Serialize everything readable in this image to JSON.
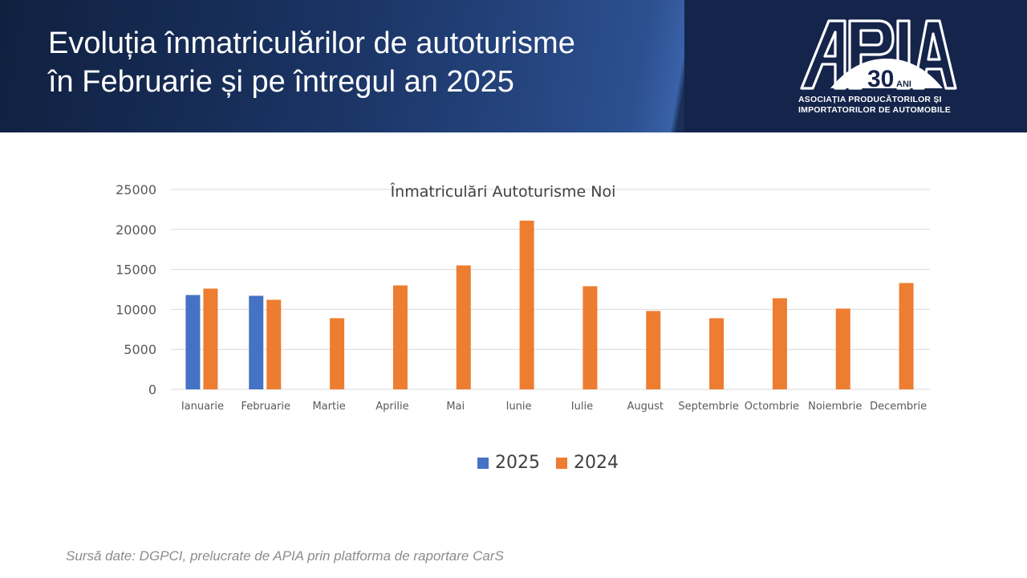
{
  "header": {
    "title_line1": "Evoluția înmatriculărilor de autoturisme",
    "title_line2": "în Februarie și pe întregul an 2025"
  },
  "logo": {
    "wordmark": "APIA",
    "anniversary_number": "30",
    "anniversary_suffix": "ANI",
    "caption_line1": "ASOCIAȚIA PRODUCĂTORILOR ȘI",
    "caption_line2": "IMPORTATORILOR DE AUTOMOBILE"
  },
  "colors": {
    "series_2025": "#4472c4",
    "series_2024": "#ed7d31",
    "gridline": "#d9d9d9",
    "axis_text": "#595959"
  },
  "chart_data": {
    "type": "bar",
    "title": "Înmatriculări Autoturisme Noi",
    "xlabel": "",
    "ylabel": "",
    "ylim": [
      0,
      25000
    ],
    "yticks": [
      "0",
      "5000",
      "10000",
      "15000",
      "20000",
      "25000"
    ],
    "grid": true,
    "legend_position": "bottom",
    "categories": [
      "Ianuarie",
      "Februarie",
      "Martie",
      "Aprilie",
      "Mai",
      "Iunie",
      "Iulie",
      "August",
      "Septembrie",
      "Octombrie",
      "Noiembrie",
      "Decembrie"
    ],
    "series": [
      {
        "name": "2025",
        "values": [
          11800,
          11700,
          null,
          null,
          null,
          null,
          null,
          null,
          null,
          null,
          null,
          null
        ]
      },
      {
        "name": "2024",
        "values": [
          12600,
          11200,
          8900,
          13000,
          15500,
          21100,
          12900,
          9800,
          8900,
          11400,
          10100,
          13300
        ]
      }
    ]
  },
  "source_note": "Sursă date: DGPCI, prelucrate de APIA prin platforma de raportare CarS"
}
